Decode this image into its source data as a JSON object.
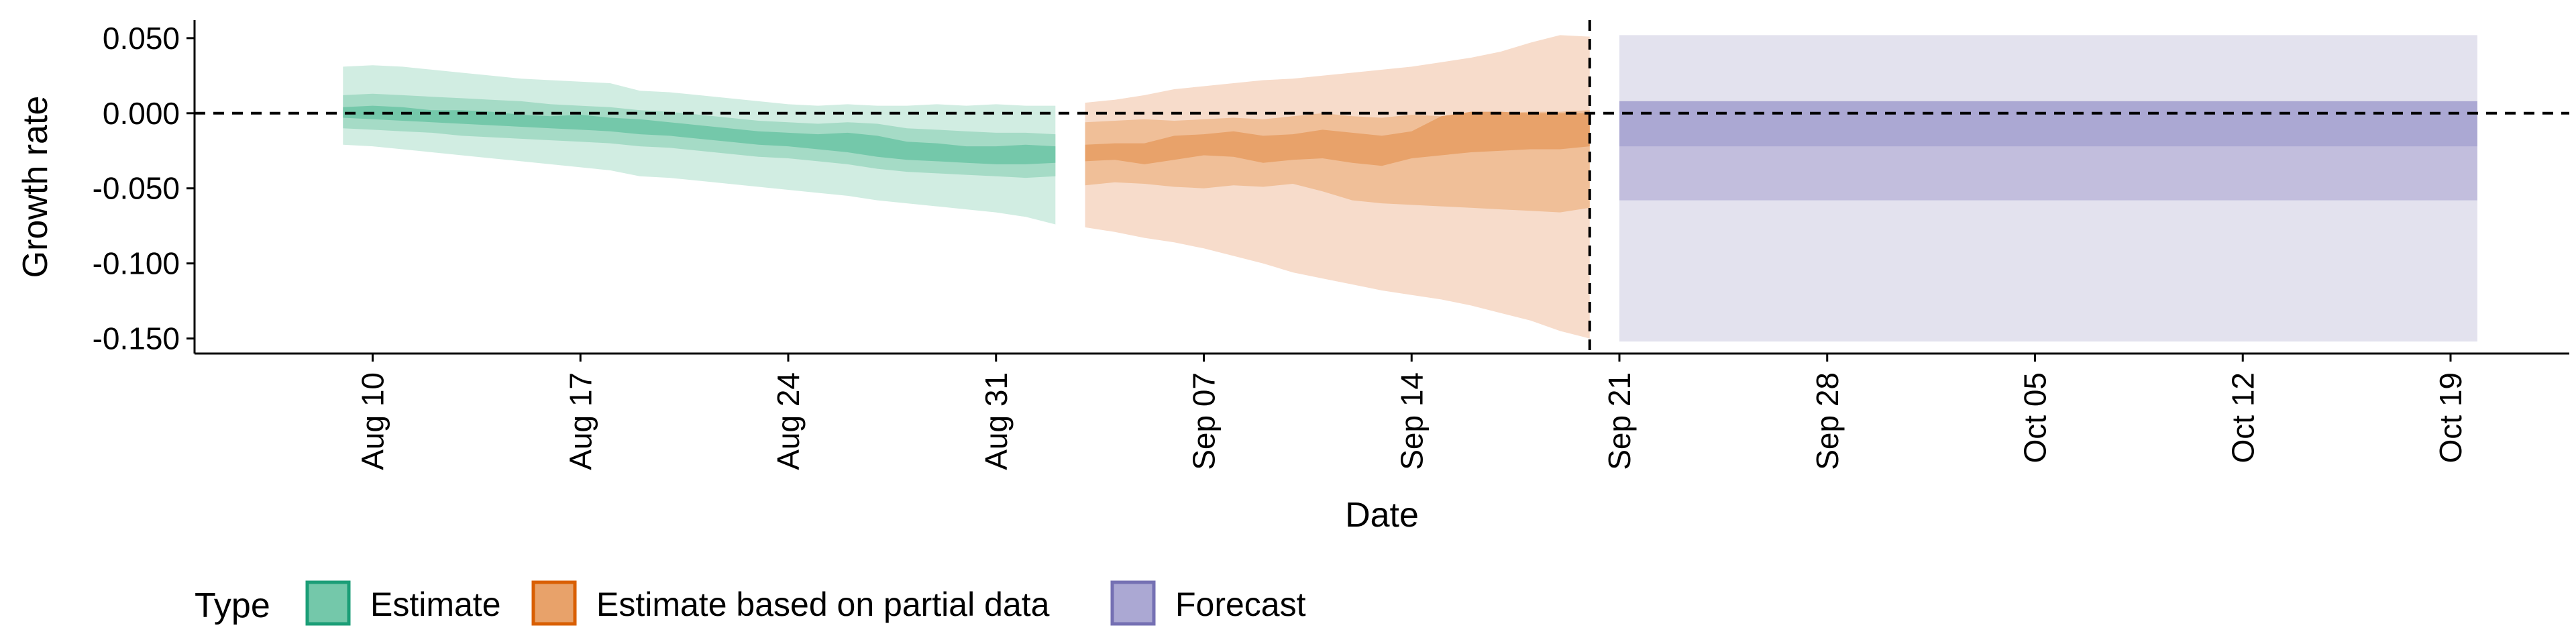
{
  "chart_data": {
    "type": "area",
    "xlabel": "Date",
    "ylabel": "Growth rate",
    "ylim": [
      -0.16,
      0.062
    ],
    "xlim": [
      "2020-08-04",
      "2020-10-23"
    ],
    "y_ticks": [
      {
        "value": 0.05,
        "label": "0.050"
      },
      {
        "value": 0.0,
        "label": "0.000"
      },
      {
        "value": -0.05,
        "label": "-0.050"
      },
      {
        "value": -0.1,
        "label": "-0.100"
      },
      {
        "value": -0.15,
        "label": "-0.150"
      }
    ],
    "x_ticks": [
      {
        "date": "2020-08-10",
        "label": "Aug 10"
      },
      {
        "date": "2020-08-17",
        "label": "Aug 17"
      },
      {
        "date": "2020-08-24",
        "label": "Aug 24"
      },
      {
        "date": "2020-08-31",
        "label": "Aug 31"
      },
      {
        "date": "2020-09-07",
        "label": "Sep 07"
      },
      {
        "date": "2020-09-14",
        "label": "Sep 14"
      },
      {
        "date": "2020-09-21",
        "label": "Sep 21"
      },
      {
        "date": "2020-09-28",
        "label": "Sep 28"
      },
      {
        "date": "2020-10-05",
        "label": "Oct 05"
      },
      {
        "date": "2020-10-12",
        "label": "Oct 12"
      },
      {
        "date": "2020-10-19",
        "label": "Oct 19"
      }
    ],
    "reference_lines": {
      "horizontal_y": 0.0,
      "vertical_date": "2020-09-20"
    },
    "legend": {
      "title": "Type",
      "position": "bottom",
      "entries": [
        {
          "label": "Estimate",
          "fill": "#74c8aa",
          "border": "#1b9e77"
        },
        {
          "label": "Estimate based on partial data",
          "fill": "#e8a26a",
          "border": "#d95f02"
        },
        {
          "label": "Forecast",
          "fill": "#aba8d3",
          "border": "#7570b3"
        }
      ]
    },
    "series": [
      {
        "name": "Estimate",
        "colors": {
          "outer": "#d1ede2",
          "mid": "#a5dbc6",
          "inner": "#74c8aa"
        },
        "dates": [
          "2020-08-09",
          "2020-08-10",
          "2020-08-11",
          "2020-08-12",
          "2020-08-13",
          "2020-08-14",
          "2020-08-15",
          "2020-08-16",
          "2020-08-17",
          "2020-08-18",
          "2020-08-19",
          "2020-08-20",
          "2020-08-21",
          "2020-08-22",
          "2020-08-23",
          "2020-08-24",
          "2020-08-25",
          "2020-08-26",
          "2020-08-27",
          "2020-08-28",
          "2020-08-29",
          "2020-08-30",
          "2020-08-31",
          "2020-09-01",
          "2020-09-02"
        ],
        "outer_upper": [
          0.031,
          0.032,
          0.031,
          0.029,
          0.027,
          0.025,
          0.023,
          0.022,
          0.021,
          0.02,
          0.015,
          0.014,
          0.012,
          0.01,
          0.008,
          0.006,
          0.005,
          0.006,
          0.005,
          0.005,
          0.006,
          0.005,
          0.006,
          0.005,
          0.005
        ],
        "outer_lower": [
          -0.021,
          -0.022,
          -0.024,
          -0.026,
          -0.028,
          -0.03,
          -0.032,
          -0.034,
          -0.036,
          -0.038,
          -0.042,
          -0.043,
          -0.045,
          -0.047,
          -0.049,
          -0.051,
          -0.053,
          -0.055,
          -0.058,
          -0.06,
          -0.062,
          -0.064,
          -0.066,
          -0.069,
          -0.074
        ],
        "mid_upper": [
          0.012,
          0.013,
          0.012,
          0.011,
          0.01,
          0.009,
          0.008,
          0.006,
          0.005,
          0.004,
          0.002,
          0.001,
          -0.001,
          -0.003,
          -0.005,
          -0.006,
          -0.007,
          -0.006,
          -0.007,
          -0.01,
          -0.011,
          -0.012,
          -0.013,
          -0.013,
          -0.014
        ],
        "mid_lower": [
          -0.01,
          -0.011,
          -0.012,
          -0.013,
          -0.015,
          -0.016,
          -0.017,
          -0.018,
          -0.019,
          -0.02,
          -0.022,
          -0.023,
          -0.025,
          -0.027,
          -0.029,
          -0.03,
          -0.032,
          -0.034,
          -0.037,
          -0.039,
          -0.04,
          -0.041,
          -0.042,
          -0.043,
          -0.042
        ],
        "inner_upper": [
          0.004,
          0.005,
          0.004,
          0.002,
          0.002,
          0.001,
          -0.001,
          -0.002,
          -0.001,
          -0.003,
          -0.004,
          -0.006,
          -0.008,
          -0.01,
          -0.012,
          -0.013,
          -0.014,
          -0.013,
          -0.015,
          -0.019,
          -0.02,
          -0.022,
          -0.022,
          -0.021,
          -0.022
        ],
        "inner_lower": [
          -0.003,
          -0.004,
          -0.005,
          -0.006,
          -0.007,
          -0.008,
          -0.009,
          -0.01,
          -0.011,
          -0.012,
          -0.014,
          -0.015,
          -0.017,
          -0.019,
          -0.021,
          -0.022,
          -0.024,
          -0.026,
          -0.029,
          -0.031,
          -0.032,
          -0.033,
          -0.034,
          -0.034,
          -0.033
        ]
      },
      {
        "name": "Estimate based on partial data",
        "colors": {
          "outer": "#f7dccb",
          "mid": "#f0bf98",
          "inner": "#e8a26a"
        },
        "dates": [
          "2020-09-03",
          "2020-09-04",
          "2020-09-05",
          "2020-09-06",
          "2020-09-07",
          "2020-09-08",
          "2020-09-09",
          "2020-09-10",
          "2020-09-11",
          "2020-09-12",
          "2020-09-13",
          "2020-09-14",
          "2020-09-15",
          "2020-09-16",
          "2020-09-17",
          "2020-09-18",
          "2020-09-19",
          "2020-09-20"
        ],
        "outer_upper": [
          0.007,
          0.009,
          0.012,
          0.016,
          0.018,
          0.02,
          0.022,
          0.023,
          0.025,
          0.027,
          0.029,
          0.031,
          0.034,
          0.037,
          0.041,
          0.047,
          0.052,
          0.051
        ],
        "outer_lower": [
          -0.076,
          -0.079,
          -0.083,
          -0.086,
          -0.09,
          -0.095,
          -0.1,
          -0.106,
          -0.11,
          -0.114,
          -0.118,
          -0.121,
          -0.124,
          -0.128,
          -0.133,
          -0.138,
          -0.145,
          -0.15
        ],
        "mid_upper": [
          -0.006,
          -0.005,
          -0.004,
          -0.005,
          -0.004,
          -0.003,
          -0.004,
          -0.002,
          0.0,
          -0.002,
          -0.003,
          -0.001,
          -0.002,
          0.0,
          0.0,
          0.001,
          0.001,
          0.002
        ],
        "mid_lower": [
          -0.048,
          -0.046,
          -0.047,
          -0.049,
          -0.05,
          -0.048,
          -0.049,
          -0.047,
          -0.052,
          -0.058,
          -0.06,
          -0.061,
          -0.062,
          -0.063,
          -0.064,
          -0.065,
          -0.066,
          -0.063
        ],
        "inner_upper": [
          -0.021,
          -0.02,
          -0.02,
          -0.015,
          -0.014,
          -0.012,
          -0.015,
          -0.014,
          -0.011,
          -0.013,
          -0.015,
          -0.012,
          -0.002,
          0.001,
          0.001,
          0.0,
          0.0,
          0.0
        ],
        "inner_lower": [
          -0.032,
          -0.031,
          -0.034,
          -0.031,
          -0.028,
          -0.029,
          -0.033,
          -0.031,
          -0.03,
          -0.033,
          -0.035,
          -0.03,
          -0.028,
          -0.026,
          -0.025,
          -0.024,
          -0.024,
          -0.022
        ]
      },
      {
        "name": "Forecast",
        "colors": {
          "outer": "#e3e2ee",
          "mid": "#c2bedd",
          "inner": "#aba8d3"
        },
        "dates": [
          "2020-09-21",
          "2020-10-19"
        ],
        "outer_upper": [
          0.052,
          0.052
        ],
        "outer_lower": [
          -0.152,
          -0.152
        ],
        "mid_upper": [
          0.008,
          0.008
        ],
        "mid_lower": [
          -0.058,
          -0.058
        ],
        "inner_upper": [
          0.008,
          0.008
        ],
        "inner_lower": [
          -0.022,
          -0.022
        ]
      }
    ]
  }
}
